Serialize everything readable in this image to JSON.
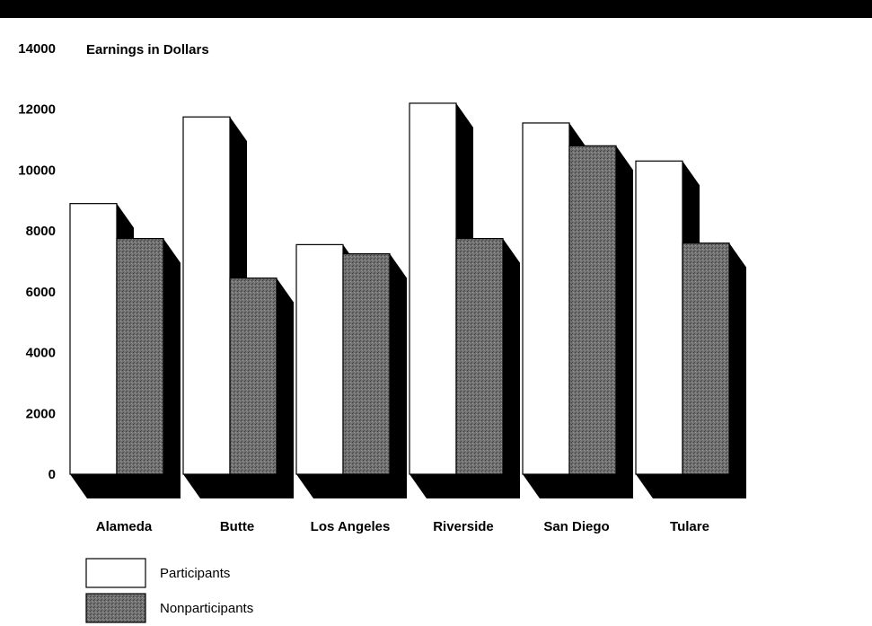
{
  "chart_data": {
    "type": "bar",
    "title": "Earnings in Dollars",
    "xlabel": "",
    "ylabel": "",
    "ylim": [
      0,
      14000
    ],
    "yticks": [
      0,
      2000,
      4000,
      6000,
      8000,
      10000,
      12000,
      14000
    ],
    "categories": [
      "Alameda",
      "Butte",
      "Los Angeles",
      "Riverside",
      "San Diego",
      "Tulare"
    ],
    "series": [
      {
        "name": "Participants",
        "values": [
          8900,
          11750,
          7550,
          12200,
          11550,
          10300
        ]
      },
      {
        "name": "Nonparticipants",
        "values": [
          7750,
          6450,
          7250,
          7750,
          10800,
          7600
        ]
      }
    ],
    "grid": false,
    "legend_placement": "bottom-left",
    "colors": {
      "participants": "#ffffff",
      "nonparticipants": "#6e6e6e",
      "shadow": "#000000",
      "bar_outline": "#000000"
    }
  }
}
